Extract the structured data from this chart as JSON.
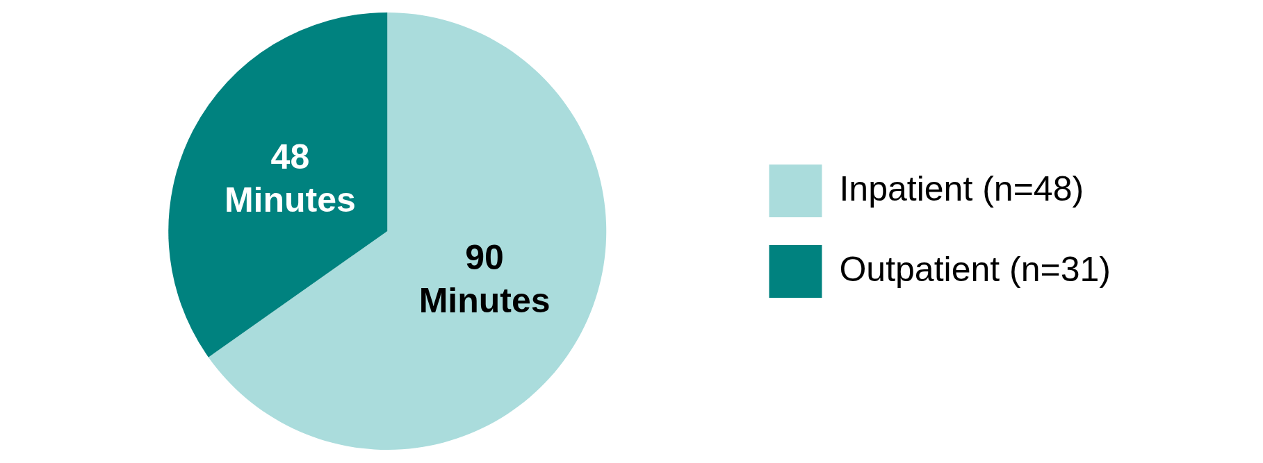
{
  "chart_data": {
    "type": "pie",
    "categories": [
      "Inpatient (n=48)",
      "Outpatient (n=31)"
    ],
    "values": [
      90,
      48
    ],
    "colors": [
      "#aadcdc",
      "#00827f"
    ],
    "value_labels": [
      "90 Minutes",
      "48 Minutes"
    ],
    "legend": "right"
  }
}
